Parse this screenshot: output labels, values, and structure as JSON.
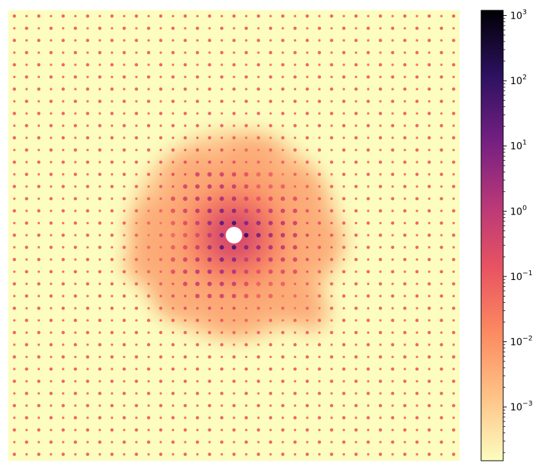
{
  "chart_data": {
    "type": "heatmap",
    "title": "",
    "xlabel": "",
    "ylabel": "",
    "axes_visible": false,
    "pattern": "2D diffraction pattern: square lattice of Bragg peaks on a pale background, with a bright central region of diffuse scattering and a masked (white) beam stop at the center",
    "lattice": {
      "peaks_per_row": 37,
      "peaks_per_column": 37
    },
    "colormap": {
      "name": "magma_r",
      "scale": "log",
      "vmin": 0.00015,
      "vmax": 1200,
      "stops": [
        "#fcfdbf",
        "#fec287",
        "#fc8961",
        "#e85362",
        "#b73779",
        "#721f81",
        "#2c115f",
        "#000004"
      ]
    },
    "colorbar": {
      "orientation": "vertical",
      "location": "right",
      "ticks": [
        {
          "base": "10",
          "exp": "3",
          "value": 1000
        },
        {
          "base": "10",
          "exp": "2",
          "value": 100
        },
        {
          "base": "10",
          "exp": "1",
          "value": 10
        },
        {
          "base": "10",
          "exp": "0",
          "value": 1
        },
        {
          "base": "10",
          "exp": "−1",
          "value": 0.1
        },
        {
          "base": "10",
          "exp": "−2",
          "value": 0.01
        },
        {
          "base": "10",
          "exp": "−3",
          "value": 0.001
        }
      ]
    }
  }
}
